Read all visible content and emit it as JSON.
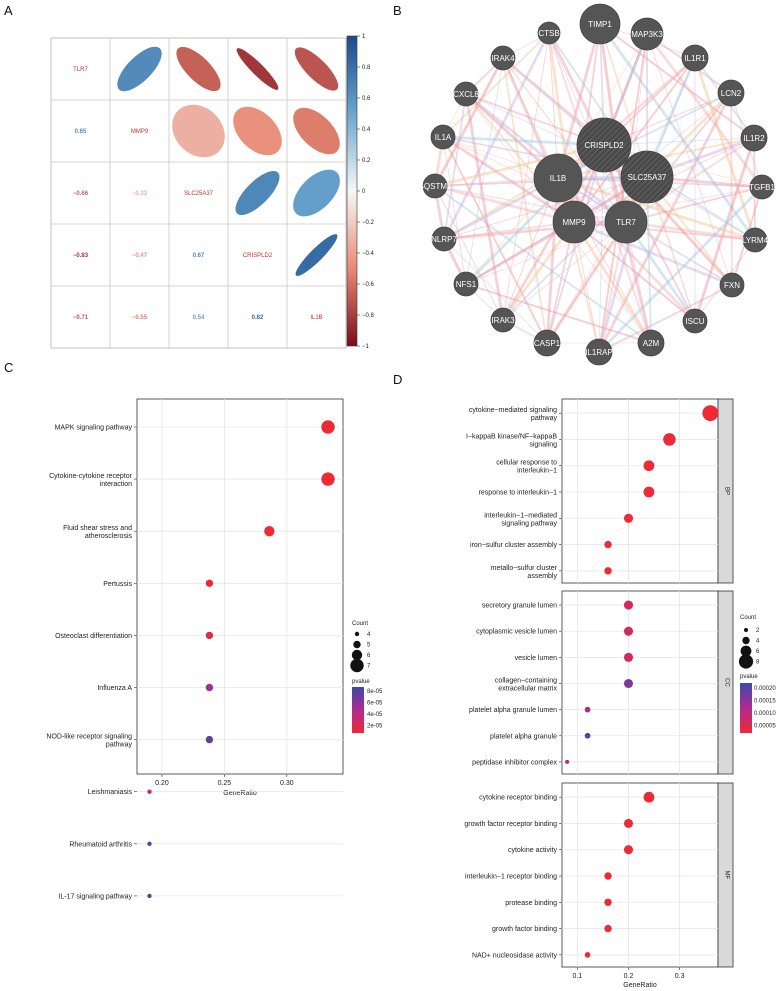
{
  "panel_labels": {
    "a": "A",
    "b": "B",
    "c": "C",
    "d": "D"
  },
  "chart_data": [
    {
      "type": "heatmap",
      "panel": "A",
      "variables": [
        "TLR7",
        "MMP9",
        "SLC25A37",
        "CRISPLD2",
        "IL1B"
      ],
      "matrix": [
        [
          1.0,
          0.65,
          -0.66,
          -0.83,
          -0.71
        ],
        [
          0.65,
          1.0,
          -0.33,
          -0.47,
          -0.55
        ],
        [
          -0.66,
          -0.33,
          1.0,
          0.67,
          0.54
        ],
        [
          -0.83,
          -0.47,
          0.67,
          1.0,
          0.82
        ],
        [
          -0.71,
          -0.55,
          0.54,
          0.82,
          1.0
        ]
      ],
      "lower_labels": [
        {
          "text": "0.65",
          "row": 1,
          "col": 0,
          "v": 0.65
        },
        {
          "text": "−0.66",
          "row": 2,
          "col": 0,
          "v": -0.66
        },
        {
          "text": "−0.33",
          "row": 2,
          "col": 1,
          "v": -0.33
        },
        {
          "text": "−0.83",
          "row": 3,
          "col": 0,
          "v": -0.83
        },
        {
          "text": "−0.47",
          "row": 3,
          "col": 1,
          "v": -0.47
        },
        {
          "text": "0.67",
          "row": 3,
          "col": 2,
          "v": 0.67
        },
        {
          "text": "−0.71",
          "row": 4,
          "col": 0,
          "v": -0.71
        },
        {
          "text": "−0.55",
          "row": 4,
          "col": 1,
          "v": -0.55
        },
        {
          "text": "0.54",
          "row": 4,
          "col": 2,
          "v": 0.54
        },
        {
          "text": "0.82",
          "row": 4,
          "col": 3,
          "v": 0.82
        }
      ],
      "colorbar": {
        "range": [
          -1,
          1
        ],
        "ticks": [
          "1",
          "0.8",
          "0.6",
          "0.4",
          "0.2",
          "0",
          "−0.2",
          "−0.4",
          "−0.6",
          "−0.8",
          "−1"
        ]
      },
      "colors": {
        "negative": "#8e1224",
        "neutral": "#f7f7f7",
        "positive": "#1a5096"
      }
    },
    {
      "type": "network",
      "panel": "B",
      "nodes": [
        "TIMP1",
        "CTSB",
        "MAP3K3",
        "IRAK4",
        "IL1R1",
        "CXCL8",
        "LCN2",
        "IL1A",
        "IL1R2",
        "SQSTM1",
        "TGFB1",
        "NLRP7",
        "LYRM4",
        "NFS1",
        "FXN",
        "IRAK3",
        "ISCU",
        "CASP1",
        "IL1RAP",
        "A2M",
        "CRISPLD2",
        "IL1B",
        "SLC25A37",
        "MMP9",
        "TLR7"
      ]
    },
    {
      "type": "scatter",
      "panel": "C",
      "xlabel": "GeneRatio",
      "xticks": [
        "0.20",
        "0.25",
        "0.30"
      ],
      "xlim": [
        0.18,
        0.345
      ],
      "terms": [
        {
          "label": [
            "MAPK signaling pathway"
          ],
          "x": 0.333,
          "count": 7,
          "pvalue": 1e-05
        },
        {
          "label": [
            "Cytokine-cytokine receptor",
            "interaction"
          ],
          "x": 0.333,
          "count": 7,
          "pvalue": 1e-05
        },
        {
          "label": [
            "Fluid shear stress and",
            "atherosclerosis"
          ],
          "x": 0.286,
          "count": 6,
          "pvalue": 1e-05
        },
        {
          "label": [
            "Pertussis"
          ],
          "x": 0.238,
          "count": 5,
          "pvalue": 1.2e-05
        },
        {
          "label": [
            "Osteoclast differentiation"
          ],
          "x": 0.238,
          "count": 5,
          "pvalue": 2e-05
        },
        {
          "label": [
            "Influenza A"
          ],
          "x": 0.238,
          "count": 5,
          "pvalue": 5.6e-05
        },
        {
          "label": [
            "NOD-like receptor signaling",
            "pathway"
          ],
          "x": 0.238,
          "count": 5,
          "pvalue": 7.8e-05
        },
        {
          "label": [
            "Leishmaniasis"
          ],
          "x": 0.19,
          "count": 4,
          "pvalue": 4.5e-05
        },
        {
          "label": [
            "Rheumatoid arthritis"
          ],
          "x": 0.19,
          "count": 4,
          "pvalue": 8e-05
        },
        {
          "label": [
            "IL-17 signaling pathway"
          ],
          "x": 0.19,
          "count": 4,
          "pvalue": 8.2e-05
        }
      ],
      "legend": {
        "count_title": "Count",
        "count_values": [
          4,
          5,
          6,
          7
        ],
        "pvalue_title": "pvalue",
        "pvalue_ticks": [
          "8e-05",
          "6e-05",
          "4e-05",
          "2e-05"
        ],
        "pvalue_range": [
          1e-05,
          9e-05
        ]
      }
    },
    {
      "type": "scatter",
      "panel": "D",
      "xlabel": "GeneRatio",
      "xticks": [
        "0.1",
        "0.2",
        "0.3"
      ],
      "xlim": [
        0.07,
        0.375
      ],
      "facets": [
        {
          "name": "BP",
          "terms": [
            {
              "label": [
                "cytokine−mediated signaling",
                "pathway"
              ],
              "x": 0.36,
              "count": 9,
              "pvalue": 1e-06
            },
            {
              "label": [
                "I−kappaB kinase/NF−kappaB",
                "signaling"
              ],
              "x": 0.28,
              "count": 7,
              "pvalue": 1e-06
            },
            {
              "label": [
                "cellular response to",
                "interleukin−1"
              ],
              "x": 0.24,
              "count": 6,
              "pvalue": 1e-06
            },
            {
              "label": [
                "response to interleukin−1"
              ],
              "x": 0.24,
              "count": 6,
              "pvalue": 1e-06
            },
            {
              "label": [
                "interleukin−1−mediated",
                "signaling pathway"
              ],
              "x": 0.2,
              "count": 5,
              "pvalue": 1e-06
            },
            {
              "label": [
                "iron−sulfur cluster assembly"
              ],
              "x": 0.16,
              "count": 4,
              "pvalue": 1e-06
            },
            {
              "label": [
                "metallo−sulfur cluster",
                "assembly"
              ],
              "x": 0.16,
              "count": 4,
              "pvalue": 1e-06
            }
          ]
        },
        {
          "name": "CC",
          "terms": [
            {
              "label": [
                "secretory granule lumen"
              ],
              "x": 0.2,
              "count": 5,
              "pvalue": 5e-05
            },
            {
              "label": [
                "cytoplasmic vesicle lumen"
              ],
              "x": 0.2,
              "count": 5,
              "pvalue": 5e-05
            },
            {
              "label": [
                "vesicle lumen"
              ],
              "x": 0.2,
              "count": 5,
              "pvalue": 5e-05
            },
            {
              "label": [
                "collagen−containing",
                "extracellular matrix"
              ],
              "x": 0.2,
              "count": 5,
              "pvalue": 0.00016
            },
            {
              "label": [
                "platelet alpha granule lumen"
              ],
              "x": 0.12,
              "count": 3,
              "pvalue": 0.00012
            },
            {
              "label": [
                "platelet alpha granule"
              ],
              "x": 0.12,
              "count": 3,
              "pvalue": 0.00021
            },
            {
              "label": [
                "peptidase inhibitor complex"
              ],
              "x": 0.08,
              "count": 2,
              "pvalue": 8e-05
            }
          ]
        },
        {
          "name": "MF",
          "terms": [
            {
              "label": [
                "cytokine receptor binding"
              ],
              "x": 0.24,
              "count": 6,
              "pvalue": 1e-06
            },
            {
              "label": [
                "growth factor receptor binding"
              ],
              "x": 0.2,
              "count": 5,
              "pvalue": 1e-06
            },
            {
              "label": [
                "cytokine activity"
              ],
              "x": 0.2,
              "count": 5,
              "pvalue": 1e-06
            },
            {
              "label": [
                "interleukin−1 receptor binding"
              ],
              "x": 0.16,
              "count": 4,
              "pvalue": 1e-06
            },
            {
              "label": [
                "protease binding"
              ],
              "x": 0.16,
              "count": 4,
              "pvalue": 1e-06
            },
            {
              "label": [
                "growth factor binding"
              ],
              "x": 0.16,
              "count": 4,
              "pvalue": 1e-06
            },
            {
              "label": [
                "NAD+ nucleosidase activity"
              ],
              "x": 0.12,
              "count": 3,
              "pvalue": 1e-06
            }
          ]
        }
      ],
      "legend": {
        "count_title": "Count",
        "count_values": [
          2,
          4,
          6,
          8
        ],
        "pvalue_title": "pvalue",
        "pvalue_ticks": [
          "0.00020",
          "0.00015",
          "0.00010",
          "0.00005"
        ],
        "pvalue_range": [
          0,
          0.00022
        ]
      }
    }
  ]
}
